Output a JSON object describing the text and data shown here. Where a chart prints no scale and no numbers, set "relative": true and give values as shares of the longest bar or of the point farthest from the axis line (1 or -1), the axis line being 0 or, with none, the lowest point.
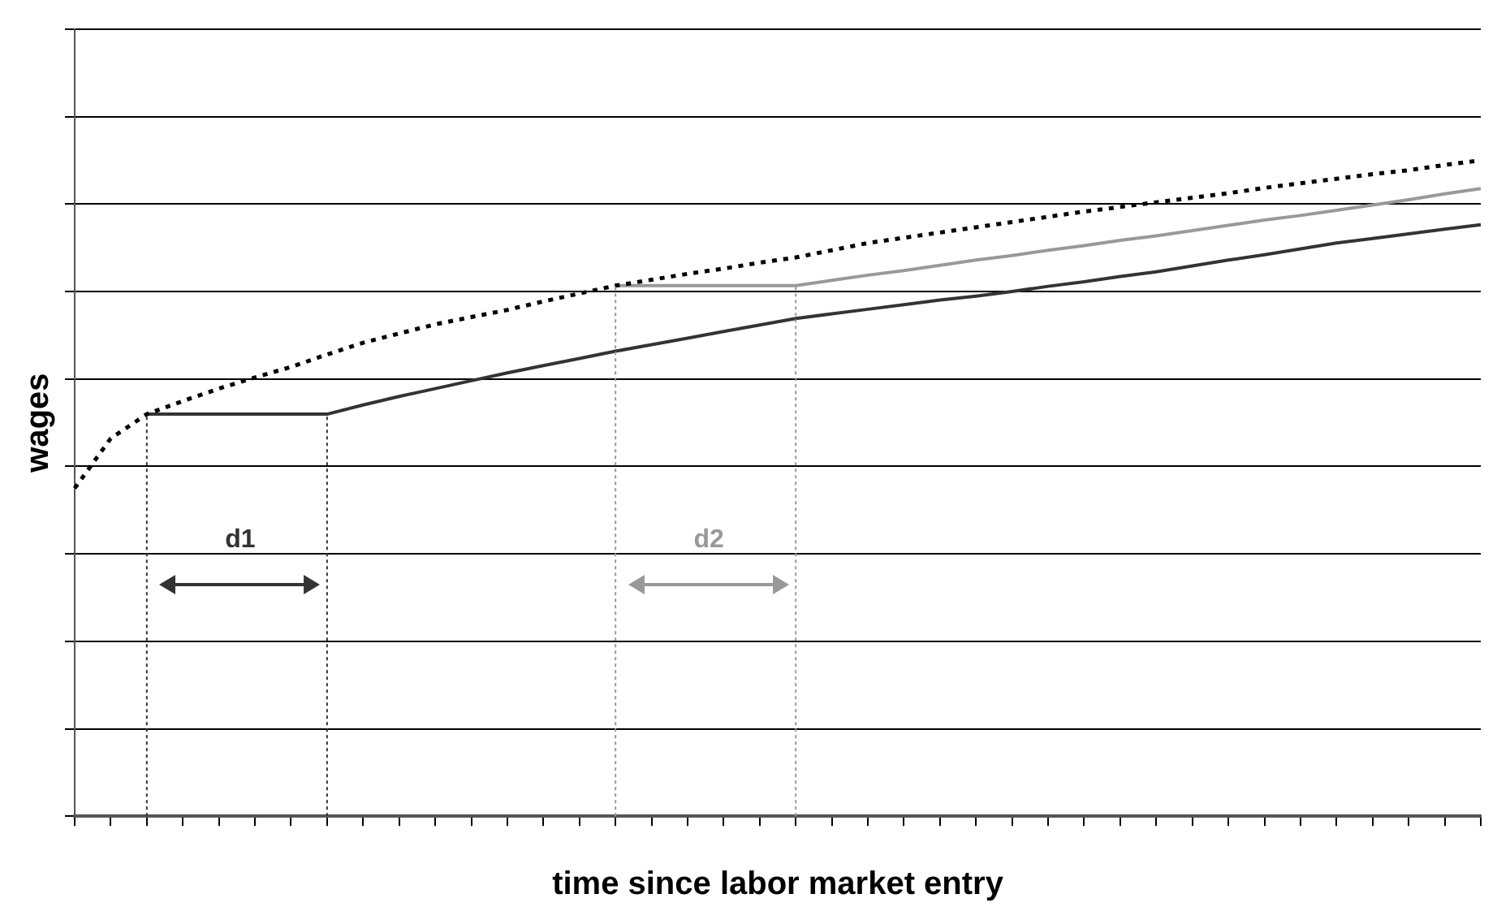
{
  "chart_data": {
    "type": "line",
    "relative": true,
    "xlabel": "time since labor market entry",
    "ylabel": "wages",
    "categories": [
      null,
      null,
      null,
      null,
      null,
      null,
      null,
      null,
      null,
      null,
      null,
      null,
      null,
      null,
      null,
      null,
      null,
      null,
      null,
      null,
      null,
      null,
      null,
      null,
      null,
      null,
      null,
      null,
      null,
      null,
      null,
      null,
      null,
      null,
      null,
      null,
      null,
      null,
      null,
      null
    ],
    "grid": "y",
    "legend": false,
    "marker": "none",
    "series": [
      {
        "color": "#000000",
        "line_style": "dotted",
        "values": [
          0.5,
          0.576,
          0.613,
          0.633,
          0.652,
          0.669,
          0.685,
          0.704,
          0.722,
          0.736,
          0.75,
          0.761,
          0.772,
          0.785,
          0.797,
          0.809,
          0.818,
          0.827,
          0.835,
          0.844,
          0.852,
          0.863,
          0.874,
          0.882,
          0.89,
          0.898,
          0.906,
          0.914,
          0.922,
          0.929,
          0.936,
          0.943,
          0.95,
          0.958,
          0.965,
          0.972,
          0.979,
          0.985,
          0.993,
          1
        ]
      },
      {
        "color": "#333333",
        "line_style": "solid",
        "values": [
          null,
          null,
          0.613,
          0.613,
          0.613,
          0.613,
          0.613,
          0.613,
          0.627,
          0.64,
          0.652,
          0.664,
          0.676,
          0.687,
          0.698,
          0.709,
          0.719,
          0.729,
          0.739,
          0.749,
          0.759,
          0.766,
          0.773,
          0.78,
          0.787,
          0.793,
          0.8,
          0.808,
          0.815,
          0.823,
          0.83,
          0.839,
          0.848,
          0.856,
          0.865,
          0.874,
          0.881,
          0.888,
          0.895,
          0.902
        ]
      },
      {
        "color": "#999999",
        "line_style": "solid",
        "values": [
          null,
          null,
          null,
          null,
          null,
          null,
          null,
          null,
          null,
          null,
          null,
          null,
          null,
          null,
          null,
          0.809,
          0.809,
          0.809,
          0.809,
          0.809,
          0.809,
          0.817,
          0.825,
          0.832,
          0.84,
          0.848,
          0.855,
          0.863,
          0.87,
          0.878,
          0.885,
          0.893,
          0.901,
          0.909,
          0.916,
          0.924,
          0.932,
          0.94,
          0.949,
          0.957
        ]
      }
    ],
    "annotations": [
      "d1",
      "d2"
    ]
  }
}
